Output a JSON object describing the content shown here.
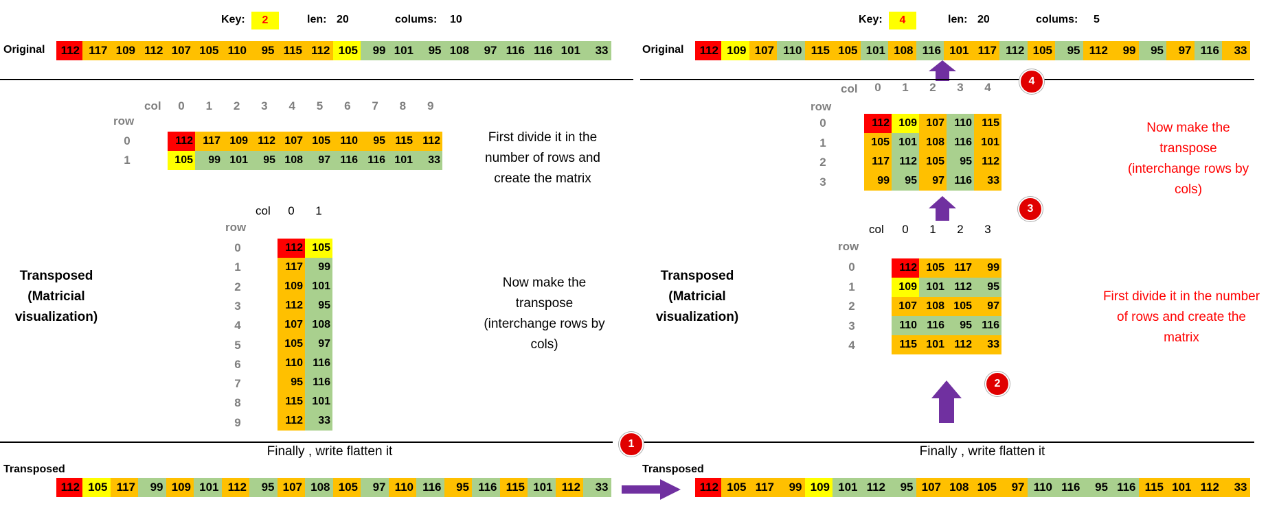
{
  "colors": {
    "red": "#ff0000",
    "yellow": "#ffff00",
    "orange": "#ffc000",
    "green": "#a9d08e",
    "badge": "#e00000",
    "arrow": "#7030a0"
  },
  "left": {
    "key_label": "Key:",
    "key_value": "2",
    "len_label": "len:",
    "len_value": "20",
    "cols_label": "colums:",
    "cols_value": "10",
    "original_label": "Original",
    "original": [
      {
        "v": "112",
        "c": "red"
      },
      {
        "v": "117",
        "c": "orange"
      },
      {
        "v": "109",
        "c": "orange"
      },
      {
        "v": "112",
        "c": "orange"
      },
      {
        "v": "107",
        "c": "orange"
      },
      {
        "v": "105",
        "c": "orange"
      },
      {
        "v": "110",
        "c": "orange"
      },
      {
        "v": "95",
        "c": "orange"
      },
      {
        "v": "115",
        "c": "orange"
      },
      {
        "v": "112",
        "c": "orange"
      },
      {
        "v": "105",
        "c": "yellow"
      },
      {
        "v": "99",
        "c": "green"
      },
      {
        "v": "101",
        "c": "green"
      },
      {
        "v": "95",
        "c": "green"
      },
      {
        "v": "108",
        "c": "green"
      },
      {
        "v": "97",
        "c": "green"
      },
      {
        "v": "116",
        "c": "green"
      },
      {
        "v": "116",
        "c": "green"
      },
      {
        "v": "101",
        "c": "green"
      },
      {
        "v": "33",
        "c": "green"
      }
    ],
    "matrix_col_label": "col",
    "matrix_row_label": "row",
    "matrix_cols": [
      "0",
      "1",
      "2",
      "3",
      "4",
      "5",
      "6",
      "7",
      "8",
      "9"
    ],
    "matrix_rows": [
      "0",
      "1"
    ],
    "matrix": [
      [
        {
          "v": "112",
          "c": "red"
        },
        {
          "v": "117",
          "c": "orange"
        },
        {
          "v": "109",
          "c": "orange"
        },
        {
          "v": "112",
          "c": "orange"
        },
        {
          "v": "107",
          "c": "orange"
        },
        {
          "v": "105",
          "c": "orange"
        },
        {
          "v": "110",
          "c": "orange"
        },
        {
          "v": "95",
          "c": "orange"
        },
        {
          "v": "115",
          "c": "orange"
        },
        {
          "v": "112",
          "c": "orange"
        }
      ],
      [
        {
          "v": "105",
          "c": "yellow"
        },
        {
          "v": "99",
          "c": "green"
        },
        {
          "v": "101",
          "c": "green"
        },
        {
          "v": "95",
          "c": "green"
        },
        {
          "v": "108",
          "c": "green"
        },
        {
          "v": "97",
          "c": "green"
        },
        {
          "v": "116",
          "c": "green"
        },
        {
          "v": "116",
          "c": "green"
        },
        {
          "v": "101",
          "c": "green"
        },
        {
          "v": "33",
          "c": "green"
        }
      ]
    ],
    "note_divide": "First divide it in the number of rows and create the matrix",
    "transposed_title": "Transposed (Matricial visualization)",
    "t_col_label": "col",
    "t_row_label": "row",
    "t_cols": [
      "0",
      "1"
    ],
    "t_rows": [
      "0",
      "1",
      "2",
      "3",
      "4",
      "5",
      "6",
      "7",
      "8",
      "9"
    ],
    "transposed": [
      [
        {
          "v": "112",
          "c": "red"
        },
        {
          "v": "105",
          "c": "yellow"
        }
      ],
      [
        {
          "v": "117",
          "c": "orange"
        },
        {
          "v": "99",
          "c": "green"
        }
      ],
      [
        {
          "v": "109",
          "c": "orange"
        },
        {
          "v": "101",
          "c": "green"
        }
      ],
      [
        {
          "v": "112",
          "c": "orange"
        },
        {
          "v": "95",
          "c": "green"
        }
      ],
      [
        {
          "v": "107",
          "c": "orange"
        },
        {
          "v": "108",
          "c": "green"
        }
      ],
      [
        {
          "v": "105",
          "c": "orange"
        },
        {
          "v": "97",
          "c": "green"
        }
      ],
      [
        {
          "v": "110",
          "c": "orange"
        },
        {
          "v": "116",
          "c": "green"
        }
      ],
      [
        {
          "v": "95",
          "c": "orange"
        },
        {
          "v": "116",
          "c": "green"
        }
      ],
      [
        {
          "v": "115",
          "c": "orange"
        },
        {
          "v": "101",
          "c": "green"
        }
      ],
      [
        {
          "v": "112",
          "c": "orange"
        },
        {
          "v": "33",
          "c": "green"
        }
      ]
    ],
    "note_transpose": "Now make the transpose (interchange rows by cols)",
    "note_flatten": "Finally , write flatten it",
    "final_label": "Transposed",
    "final": [
      {
        "v": "112",
        "c": "red"
      },
      {
        "v": "105",
        "c": "yellow"
      },
      {
        "v": "117",
        "c": "orange"
      },
      {
        "v": "99",
        "c": "green"
      },
      {
        "v": "109",
        "c": "orange"
      },
      {
        "v": "101",
        "c": "green"
      },
      {
        "v": "112",
        "c": "orange"
      },
      {
        "v": "95",
        "c": "green"
      },
      {
        "v": "107",
        "c": "orange"
      },
      {
        "v": "108",
        "c": "green"
      },
      {
        "v": "105",
        "c": "orange"
      },
      {
        "v": "97",
        "c": "green"
      },
      {
        "v": "110",
        "c": "orange"
      },
      {
        "v": "116",
        "c": "green"
      },
      {
        "v": "95",
        "c": "orange"
      },
      {
        "v": "116",
        "c": "green"
      },
      {
        "v": "115",
        "c": "orange"
      },
      {
        "v": "101",
        "c": "green"
      },
      {
        "v": "112",
        "c": "orange"
      },
      {
        "v": "33",
        "c": "green"
      }
    ]
  },
  "right": {
    "key_label": "Key:",
    "key_value": "4",
    "len_label": "len:",
    "len_value": "20",
    "cols_label": "colums:",
    "cols_value": "5",
    "original_label": "Original",
    "original": [
      {
        "v": "112",
        "c": "red"
      },
      {
        "v": "109",
        "c": "yellow"
      },
      {
        "v": "107",
        "c": "orange"
      },
      {
        "v": "110",
        "c": "green"
      },
      {
        "v": "115",
        "c": "orange"
      },
      {
        "v": "105",
        "c": "orange"
      },
      {
        "v": "101",
        "c": "green"
      },
      {
        "v": "108",
        "c": "orange"
      },
      {
        "v": "116",
        "c": "green"
      },
      {
        "v": "101",
        "c": "orange"
      },
      {
        "v": "117",
        "c": "orange"
      },
      {
        "v": "112",
        "c": "green"
      },
      {
        "v": "105",
        "c": "orange"
      },
      {
        "v": "95",
        "c": "green"
      },
      {
        "v": "112",
        "c": "orange"
      },
      {
        "v": "99",
        "c": "orange"
      },
      {
        "v": "95",
        "c": "green"
      },
      {
        "v": "97",
        "c": "orange"
      },
      {
        "v": "116",
        "c": "green"
      },
      {
        "v": "33",
        "c": "orange"
      }
    ],
    "matrix_col_label": "col",
    "matrix_row_label": "row",
    "matrix_cols": [
      "0",
      "1",
      "2",
      "3",
      "4"
    ],
    "matrix_rows": [
      "0",
      "1",
      "2",
      "3"
    ],
    "matrix": [
      [
        {
          "v": "112",
          "c": "red"
        },
        {
          "v": "109",
          "c": "yellow"
        },
        {
          "v": "107",
          "c": "orange"
        },
        {
          "v": "110",
          "c": "green"
        },
        {
          "v": "115",
          "c": "orange"
        }
      ],
      [
        {
          "v": "105",
          "c": "orange"
        },
        {
          "v": "101",
          "c": "green"
        },
        {
          "v": "108",
          "c": "orange"
        },
        {
          "v": "116",
          "c": "green"
        },
        {
          "v": "101",
          "c": "orange"
        }
      ],
      [
        {
          "v": "117",
          "c": "orange"
        },
        {
          "v": "112",
          "c": "green"
        },
        {
          "v": "105",
          "c": "orange"
        },
        {
          "v": "95",
          "c": "green"
        },
        {
          "v": "112",
          "c": "orange"
        }
      ],
      [
        {
          "v": "99",
          "c": "orange"
        },
        {
          "v": "95",
          "c": "green"
        },
        {
          "v": "97",
          "c": "orange"
        },
        {
          "v": "116",
          "c": "green"
        },
        {
          "v": "33",
          "c": "orange"
        }
      ]
    ],
    "note_transpose": "Now make the transpose (interchange rows by cols)",
    "transposed_title": "Transposed (Matricial visualization)",
    "t_col_label": "col",
    "t_row_label": "row",
    "t_cols": [
      "0",
      "1",
      "2",
      "3"
    ],
    "t_rows": [
      "0",
      "1",
      "2",
      "3",
      "4"
    ],
    "transposed": [
      [
        {
          "v": "112",
          "c": "red"
        },
        {
          "v": "105",
          "c": "orange"
        },
        {
          "v": "117",
          "c": "orange"
        },
        {
          "v": "99",
          "c": "orange"
        }
      ],
      [
        {
          "v": "109",
          "c": "yellow"
        },
        {
          "v": "101",
          "c": "green"
        },
        {
          "v": "112",
          "c": "green"
        },
        {
          "v": "95",
          "c": "green"
        }
      ],
      [
        {
          "v": "107",
          "c": "orange"
        },
        {
          "v": "108",
          "c": "orange"
        },
        {
          "v": "105",
          "c": "orange"
        },
        {
          "v": "97",
          "c": "orange"
        }
      ],
      [
        {
          "v": "110",
          "c": "green"
        },
        {
          "v": "116",
          "c": "green"
        },
        {
          "v": "95",
          "c": "green"
        },
        {
          "v": "116",
          "c": "green"
        }
      ],
      [
        {
          "v": "115",
          "c": "orange"
        },
        {
          "v": "101",
          "c": "orange"
        },
        {
          "v": "112",
          "c": "orange"
        },
        {
          "v": "33",
          "c": "orange"
        }
      ]
    ],
    "note_divide": "First divide it in the number of rows and create the matrix",
    "note_flatten": "Finally , write flatten it",
    "final_label": "Transposed",
    "final": [
      {
        "v": "112",
        "c": "red"
      },
      {
        "v": "105",
        "c": "orange"
      },
      {
        "v": "117",
        "c": "orange"
      },
      {
        "v": "99",
        "c": "orange"
      },
      {
        "v": "109",
        "c": "yellow"
      },
      {
        "v": "101",
        "c": "green"
      },
      {
        "v": "112",
        "c": "green"
      },
      {
        "v": "95",
        "c": "green"
      },
      {
        "v": "107",
        "c": "orange"
      },
      {
        "v": "108",
        "c": "orange"
      },
      {
        "v": "105",
        "c": "orange"
      },
      {
        "v": "97",
        "c": "orange"
      },
      {
        "v": "110",
        "c": "green"
      },
      {
        "v": "116",
        "c": "green"
      },
      {
        "v": "95",
        "c": "green"
      },
      {
        "v": "116",
        "c": "green"
      },
      {
        "v": "115",
        "c": "orange"
      },
      {
        "v": "101",
        "c": "orange"
      },
      {
        "v": "112",
        "c": "orange"
      },
      {
        "v": "33",
        "c": "orange"
      }
    ]
  },
  "badges": [
    "1",
    "2",
    "3",
    "4"
  ]
}
